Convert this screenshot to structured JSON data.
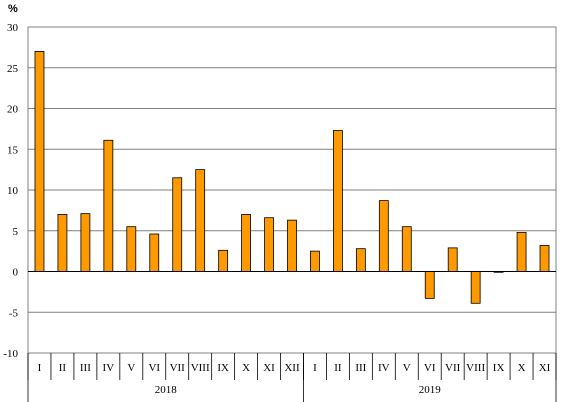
{
  "chart_data": {
    "type": "bar",
    "unit_label": "%",
    "title": "",
    "xlabel": "",
    "ylabel": "",
    "ylim": [
      -10,
      30
    ],
    "y_ticks": [
      -10,
      -5,
      0,
      5,
      10,
      15,
      20,
      25,
      30
    ],
    "grid": true,
    "bar_color": "#FF9900",
    "bar_outline": "#000000",
    "groups": [
      {
        "label": "2018",
        "count": 12
      },
      {
        "label": "2019",
        "count": 11
      }
    ],
    "categories": [
      "I",
      "II",
      "III",
      "IV",
      "V",
      "VI",
      "VII",
      "VIII",
      "IX",
      "X",
      "XI",
      "XII",
      "I",
      "II",
      "III",
      "IV",
      "V",
      "VI",
      "VII",
      "VIII",
      "IX",
      "X",
      "XI"
    ],
    "values": [
      27.0,
      7.0,
      7.1,
      16.1,
      5.5,
      4.6,
      11.5,
      12.5,
      2.6,
      7.0,
      6.6,
      6.3,
      2.5,
      17.3,
      2.8,
      8.7,
      5.5,
      -3.3,
      2.9,
      -3.9,
      -0.1,
      4.8,
      3.2
    ]
  }
}
